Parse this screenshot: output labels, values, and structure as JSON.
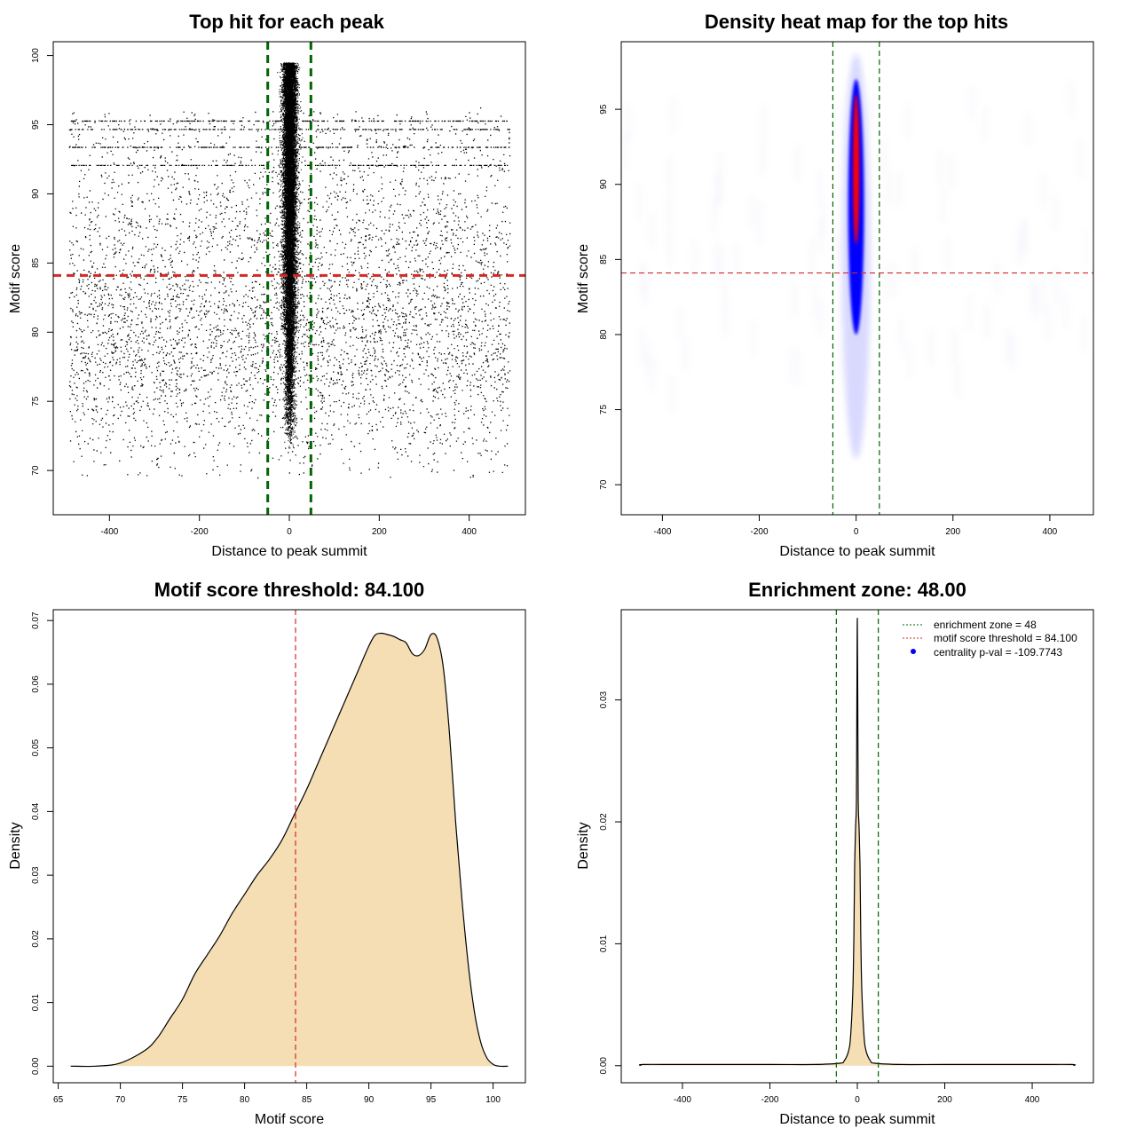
{
  "figure": {
    "panels": [
      {
        "title": "Top hit for each peak",
        "xlabel": "Distance to peak summit",
        "ylabel": "Motif score"
      },
      {
        "title": "Density heat map for the top hits",
        "xlabel": "Distance to peak summit",
        "ylabel": "Motif score"
      },
      {
        "title": "Motif score threshold: 84.100",
        "xlabel": "Motif score",
        "ylabel": "Density"
      },
      {
        "title": "Enrichment zone: 48.00",
        "xlabel": "Distance to peak summit",
        "ylabel": "Density",
        "legend": [
          "enrichment zone = 48",
          "motif score threshold = 84.100",
          "centrality p-val = -109.7743"
        ]
      }
    ]
  },
  "chart_data": [
    {
      "type": "scatter",
      "title": "Top hit for each peak",
      "xlabel": "Distance to peak summit",
      "ylabel": "Motif score",
      "xlim": [
        -525,
        525
      ],
      "ylim": [
        66.8,
        101
      ],
      "xticks": [
        -400,
        -200,
        0,
        200,
        400
      ],
      "yticks": [
        70,
        75,
        80,
        85,
        90,
        95,
        100
      ],
      "threshold_y": 84.1,
      "enrichment_zone": [
        -48,
        48
      ],
      "point_color": "#000000",
      "threshold_color": "#d62728",
      "zone_color": "#006400",
      "background_distribution": {
        "x_range": [
          -490,
          490
        ],
        "y_center": 80,
        "y_spread": 5,
        "y_range": [
          69.5,
          98.5
        ]
      },
      "central_distribution": {
        "x_center": 0,
        "x_spread": 5,
        "y_range": [
          71.5,
          99.5
        ]
      }
    },
    {
      "type": "heatmap",
      "title": "Density heat map for the top hits",
      "xlabel": "Distance to peak summit",
      "ylabel": "Motif score",
      "xlim": [
        -485,
        490
      ],
      "ylim": [
        68,
        99.5
      ],
      "xticks": [
        -400,
        -200,
        0,
        200,
        400
      ],
      "yticks": [
        70,
        75,
        80,
        85,
        90,
        95
      ],
      "threshold_y": 84.1,
      "enrichment_zone": [
        -48,
        48
      ],
      "hotspot": {
        "x": 0,
        "y_range": [
          72,
          99
        ],
        "peak_y": 91
      },
      "colors": [
        "#ffffff",
        "#0000ff",
        "#ff0000"
      ]
    },
    {
      "type": "area",
      "title": "Motif score threshold: 84.100",
      "xlabel": "Motif score",
      "ylabel": "Density",
      "xlim": [
        64.6,
        102.6
      ],
      "ylim": [
        -0.0026,
        0.0717
      ],
      "xticks": [
        65,
        70,
        75,
        80,
        85,
        90,
        95,
        100
      ],
      "yticks": [
        0.0,
        0.01,
        0.02,
        0.03,
        0.04,
        0.05,
        0.06,
        0.07
      ],
      "threshold_x": 84.1,
      "fill_color": "#f5deb3",
      "x": [
        66,
        68,
        70,
        72,
        73,
        74,
        75,
        76,
        77,
        78,
        79,
        80,
        81,
        82,
        83,
        84,
        85,
        86,
        87,
        88,
        89,
        90,
        90.5,
        91,
        91.5,
        92,
        92.5,
        93,
        93.5,
        94,
        94.5,
        95,
        95.5,
        96,
        96.5,
        97,
        97.5,
        98,
        98.5,
        99,
        99.5,
        100,
        100.5,
        101.2
      ],
      "y": [
        0.0,
        0.0,
        0.0005,
        0.0025,
        0.0045,
        0.0075,
        0.0105,
        0.0145,
        0.0175,
        0.0205,
        0.024,
        0.027,
        0.03,
        0.0325,
        0.0355,
        0.0395,
        0.0435,
        0.048,
        0.0525,
        0.057,
        0.0615,
        0.066,
        0.0677,
        0.068,
        0.0678,
        0.0675,
        0.067,
        0.0665,
        0.0648,
        0.0645,
        0.0655,
        0.0678,
        0.0672,
        0.0625,
        0.052,
        0.038,
        0.026,
        0.016,
        0.0085,
        0.0038,
        0.0013,
        0.0003,
        0.0,
        0.0
      ]
    },
    {
      "type": "area",
      "title": "Enrichment zone: 48.00",
      "xlabel": "Distance to peak summit",
      "ylabel": "Density",
      "xlim": [
        -540,
        540
      ],
      "ylim": [
        -0.0014,
        0.0374
      ],
      "xticks": [
        -400,
        -200,
        0,
        200,
        400
      ],
      "yticks": [
        0.0,
        0.01,
        0.02,
        0.03
      ],
      "enrichment_zone": [
        -48,
        48
      ],
      "fill_color": "#f5deb3",
      "legend_position": "top-right",
      "x": [
        -495,
        -490,
        -400,
        -200,
        -100,
        -40,
        -30,
        -20,
        -15,
        -10,
        -8,
        -6,
        -4,
        -2,
        -1,
        0,
        1,
        2,
        4,
        6,
        8,
        10,
        15,
        20,
        30,
        40,
        100,
        200,
        400,
        490,
        495
      ],
      "y": [
        0.0,
        0.0001,
        0.0001,
        0.0001,
        0.0001,
        0.0002,
        0.0004,
        0.0012,
        0.0026,
        0.0065,
        0.0105,
        0.0165,
        0.0195,
        0.022,
        0.03,
        0.0367,
        0.03,
        0.022,
        0.0195,
        0.0165,
        0.0105,
        0.0065,
        0.0026,
        0.0012,
        0.0004,
        0.0002,
        0.0001,
        0.0001,
        0.0001,
        0.0001,
        0.0
      ],
      "series": [
        {
          "name": "enrichment zone = 48",
          "value": 48,
          "color": "#006400"
        },
        {
          "name": "motif score threshold = 84.100",
          "value": 84.1,
          "color": "#d62728"
        },
        {
          "name": "centrality p-val = -109.7743",
          "value": -109.7743,
          "color": "#0000ff"
        }
      ]
    }
  ]
}
